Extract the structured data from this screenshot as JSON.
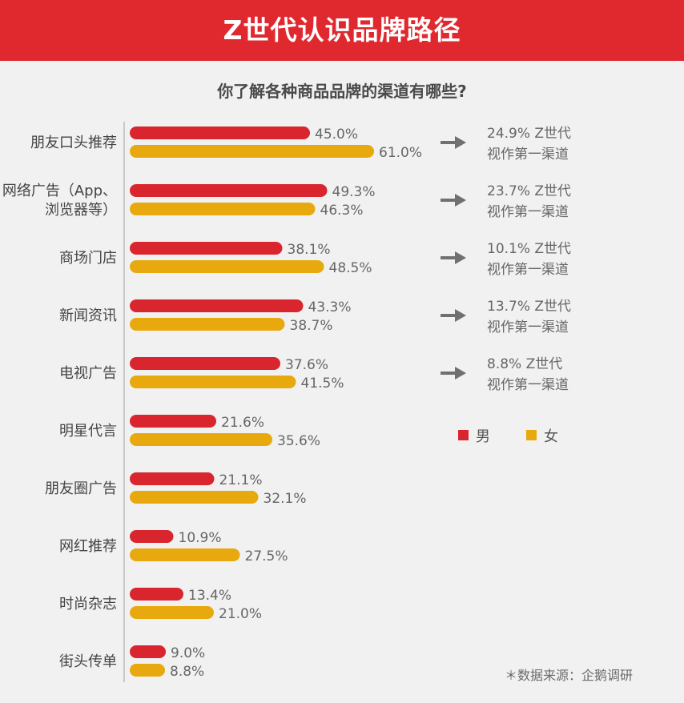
{
  "header": {
    "title": "Z世代认识品牌路径"
  },
  "chart_data": {
    "type": "bar",
    "orientation": "horizontal",
    "title": "你了解各种商品品牌的渠道有哪些?",
    "categories": [
      [
        "朋友口头推荐"
      ],
      [
        "网络广告（App、",
        "浏览器等）"
      ],
      [
        "商场门店"
      ],
      [
        "新闻资讯"
      ],
      [
        "电视广告"
      ],
      [
        "明星代言"
      ],
      [
        "朋友圈广告"
      ],
      [
        "网红推荐"
      ],
      [
        "时尚杂志"
      ],
      [
        "街头传单"
      ]
    ],
    "series": [
      {
        "name": "男",
        "color": "#d9262e",
        "values": [
          45.0,
          49.3,
          38.1,
          43.3,
          37.6,
          21.6,
          21.1,
          10.9,
          13.4,
          9.0
        ]
      },
      {
        "name": "女",
        "color": "#e8a90f",
        "values": [
          61.0,
          46.3,
          48.5,
          38.7,
          41.5,
          35.6,
          32.1,
          27.5,
          21.0,
          8.8
        ]
      }
    ],
    "value_suffix": "%",
    "legend": "right",
    "grid": false,
    "annotations": [
      [
        "24.9% Z世代",
        "视作第一渠道"
      ],
      [
        "23.7% Z世代",
        "视作第一渠道"
      ],
      [
        "10.1% Z世代",
        "视作第一渠道"
      ],
      [
        "13.7% Z世代",
        "视作第一渠道"
      ],
      [
        "8.8%  Z世代",
        "视作第一渠道"
      ]
    ]
  },
  "source_note": "＊数据来源：企鹅调研"
}
